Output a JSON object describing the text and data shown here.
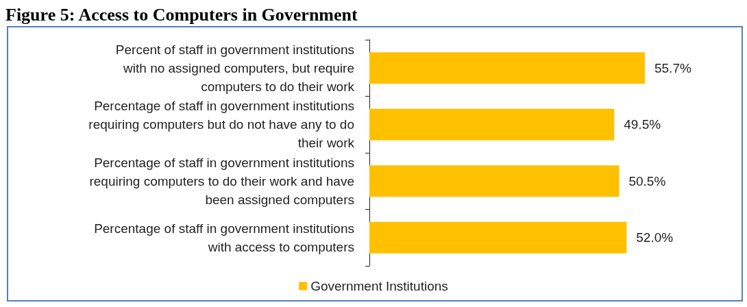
{
  "chart_data": {
    "type": "bar",
    "orientation": "horizontal",
    "title": "Figure 5: Access to Computers in Government",
    "categories": [
      "Percent of staff in government institutions\nwith no assigned computers, but require\ncomputers to do their work",
      "Percentage of staff in government institutions\nrequiring computers but do not have any to do\ntheir work",
      "Percentage of staff in government institutions\nrequiring computers to do their work and have\nbeen assigned computers",
      "Percentage of staff in government institutions\nwith access to computers"
    ],
    "series": [
      {
        "name": "Government Institutions",
        "color": "#ffc000",
        "values": [
          55.7,
          49.5,
          50.5,
          52.0
        ],
        "value_labels": [
          "55.7%",
          "49.5%",
          "50.5%",
          "52.0%"
        ]
      }
    ],
    "tick_labels": "y",
    "legend": "bottom"
  }
}
